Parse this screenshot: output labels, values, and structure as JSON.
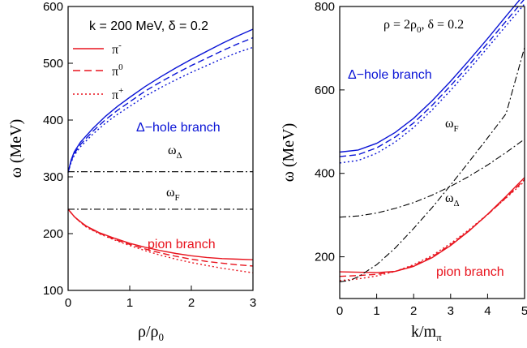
{
  "chart_data": [
    {
      "type": "line",
      "xlabel": "ρ/ρ",
      "xlabel_sub": "0",
      "ylabel": "ω (MeV)",
      "xlim": [
        0,
        3
      ],
      "ylim": [
        100,
        600
      ],
      "xticks": [
        0,
        1,
        2,
        3
      ],
      "yticks": [
        100,
        200,
        300,
        400,
        500,
        600
      ],
      "header": "k = 200 MeV, δ = 0.2",
      "legend": {
        "position": "top-left",
        "entries": [
          {
            "label": "π",
            "sup": "-",
            "style": "solid",
            "color": "#e8141e"
          },
          {
            "label": "π",
            "sup": "0",
            "style": "dashed",
            "color": "#e8141e"
          },
          {
            "label": "π",
            "sup": "+",
            "style": "dotted",
            "color": "#e8141e"
          }
        ]
      },
      "annotations": [
        {
          "id": "delta_hole",
          "text": "Δ−hole branch",
          "color": "#0a14d6"
        },
        {
          "id": "omega_delta",
          "text": "ω",
          "sub": "Δ",
          "color": "#000000"
        },
        {
          "id": "omega_f",
          "text": "ω",
          "sub": "F",
          "color": "#000000"
        },
        {
          "id": "pion_branch",
          "text": "pion branch",
          "color": "#e8141e"
        }
      ],
      "series": [
        {
          "group": "delta-hole",
          "particle": "π-",
          "color": "#0a14d6",
          "style": "solid",
          "x": [
            0,
            0.05,
            0.1,
            0.2,
            0.4,
            0.6,
            0.8,
            1.0,
            1.25,
            1.5,
            1.75,
            2.0,
            2.25,
            2.5,
            2.75,
            3.0
          ],
          "y": [
            308,
            330,
            344,
            361,
            385,
            406,
            424,
            440,
            459,
            476,
            492,
            507,
            521,
            535,
            548,
            560
          ]
        },
        {
          "group": "delta-hole",
          "particle": "π0",
          "color": "#0a14d6",
          "style": "dashed",
          "x": [
            0,
            0.05,
            0.1,
            0.2,
            0.4,
            0.6,
            0.8,
            1.0,
            1.25,
            1.5,
            1.75,
            2.0,
            2.25,
            2.5,
            2.75,
            3.0
          ],
          "y": [
            308,
            328,
            341,
            357,
            380,
            400,
            417,
            432,
            451,
            467,
            482,
            496,
            509,
            522,
            534,
            545
          ]
        },
        {
          "group": "delta-hole",
          "particle": "π+",
          "color": "#0a14d6",
          "style": "dotted",
          "x": [
            0,
            0.05,
            0.1,
            0.2,
            0.4,
            0.6,
            0.8,
            1.0,
            1.25,
            1.5,
            1.75,
            2.0,
            2.25,
            2.5,
            2.75,
            3.0
          ],
          "y": [
            308,
            326,
            338,
            353,
            375,
            394,
            410,
            424,
            442,
            457,
            471,
            484,
            496,
            508,
            519,
            528
          ]
        },
        {
          "group": "pion",
          "particle": "π-",
          "color": "#e8141e",
          "style": "solid",
          "x": [
            0,
            0.1,
            0.2,
            0.3,
            0.5,
            0.75,
            1.0,
            1.25,
            1.5,
            1.75,
            2.0,
            2.25,
            2.5,
            2.75,
            3.0
          ],
          "y": [
            243,
            230,
            221,
            213,
            202,
            192,
            183,
            176,
            170,
            165,
            161,
            158,
            156,
            155,
            154
          ]
        },
        {
          "group": "pion",
          "particle": "π0",
          "color": "#e8141e",
          "style": "dashed",
          "x": [
            0,
            0.1,
            0.2,
            0.3,
            0.5,
            0.75,
            1.0,
            1.25,
            1.5,
            1.75,
            2.0,
            2.25,
            2.5,
            2.75,
            3.0
          ],
          "y": [
            243,
            230,
            220,
            212,
            201,
            190,
            181,
            173,
            166,
            160,
            155,
            151,
            148,
            145,
            143
          ]
        },
        {
          "group": "pion",
          "particle": "π+",
          "color": "#e8141e",
          "style": "dotted",
          "x": [
            0,
            0.1,
            0.2,
            0.3,
            0.5,
            0.75,
            1.0,
            1.25,
            1.5,
            1.75,
            2.0,
            2.25,
            2.5,
            2.75,
            3.0
          ],
          "y": [
            243,
            230,
            220,
            211,
            200,
            189,
            179,
            170,
            162,
            155,
            149,
            144,
            139,
            135,
            131
          ]
        },
        {
          "group": "omega-delta",
          "particle": "",
          "color": "#000000",
          "style": "dashdot",
          "x": [
            0,
            3
          ],
          "y": [
            309,
            309
          ]
        },
        {
          "group": "omega-f",
          "particle": "",
          "color": "#000000",
          "style": "dashdot",
          "x": [
            0,
            3
          ],
          "y": [
            243,
            243
          ]
        }
      ]
    },
    {
      "type": "line",
      "xlabel": "k/m",
      "xlabel_sub": "π",
      "ylabel": "ω (MeV)",
      "xlim": [
        0,
        5
      ],
      "ylim": [
        100,
        800
      ],
      "xticks": [
        0,
        1,
        2,
        3,
        4,
        5
      ],
      "yticks": [
        200,
        400,
        600,
        800
      ],
      "header": "ρ = 2ρ",
      "header_sub": "0",
      "header_tail": ", δ = 0.2",
      "annotations": [
        {
          "id": "delta_hole",
          "text": "Δ−hole branch",
          "color": "#0a14d6"
        },
        {
          "id": "omega_f",
          "text": "ω",
          "sub": "F",
          "color": "#000000"
        },
        {
          "id": "omega_delta",
          "text": "ω",
          "sub": "Δ",
          "color": "#000000"
        },
        {
          "id": "pion_branch",
          "text": "pion branch",
          "color": "#e8141e"
        }
      ],
      "series": [
        {
          "group": "delta-hole",
          "particle": "π-",
          "color": "#0a14d6",
          "style": "solid",
          "x": [
            0,
            0.5,
            1,
            1.5,
            2,
            2.5,
            3,
            3.5,
            4,
            4.5,
            5
          ],
          "y": [
            451,
            456,
            472,
            498,
            532,
            574,
            621,
            671,
            723,
            777,
            830
          ]
        },
        {
          "group": "delta-hole",
          "particle": "π0",
          "color": "#0a14d6",
          "style": "dashed",
          "x": [
            0,
            0.5,
            1,
            1.5,
            2,
            2.5,
            3,
            3.5,
            4,
            4.5,
            5
          ],
          "y": [
            440,
            445,
            461,
            487,
            521,
            563,
            610,
            660,
            712,
            765,
            818
          ]
        },
        {
          "group": "delta-hole",
          "particle": "π+",
          "color": "#0a14d6",
          "style": "dotted",
          "x": [
            0,
            0.5,
            1,
            1.5,
            2,
            2.5,
            3,
            3.5,
            4,
            4.5,
            5
          ],
          "y": [
            425,
            431,
            448,
            475,
            510,
            552,
            599,
            649,
            701,
            754,
            806
          ]
        },
        {
          "group": "pion",
          "particle": "π-",
          "color": "#e8141e",
          "style": "solid",
          "x": [
            0,
            0.5,
            1,
            1.5,
            2,
            2.5,
            3,
            3.5,
            4,
            4.5,
            5
          ],
          "y": [
            164,
            163,
            162,
            165,
            177,
            198,
            227,
            262,
            302,
            345,
            390
          ]
        },
        {
          "group": "pion",
          "particle": "π0",
          "color": "#e8141e",
          "style": "dashed",
          "x": [
            0,
            0.5,
            1,
            1.5,
            2,
            2.5,
            3,
            3.5,
            4,
            4.5,
            5
          ],
          "y": [
            153,
            155,
            158,
            165,
            179,
            200,
            229,
            263,
            301,
            342,
            385
          ]
        },
        {
          "group": "pion",
          "particle": "π+",
          "color": "#e8141e",
          "style": "dotted",
          "x": [
            0,
            0.5,
            1,
            1.5,
            2,
            2.5,
            3,
            3.5,
            4,
            4.5,
            5
          ],
          "y": [
            143,
            147,
            154,
            165,
            181,
            203,
            232,
            265,
            302,
            341,
            381
          ]
        },
        {
          "group": "omega-f",
          "particle": "",
          "color": "#000000",
          "style": "dashdot",
          "x": [
            0,
            0.25,
            0.5,
            1,
            1.5,
            2,
            2.5,
            3,
            3.5,
            4,
            4.5,
            5
          ],
          "y": [
            140,
            143,
            152,
            181,
            221,
            268,
            318,
            372,
            428,
            485,
            543,
            702
          ]
        },
        {
          "group": "omega-delta",
          "particle": "",
          "color": "#000000",
          "style": "dashdot",
          "x": [
            0,
            0.5,
            1,
            1.5,
            2,
            2.5,
            3,
            3.5,
            4,
            4.5,
            5
          ],
          "y": [
            295,
            298,
            305,
            316,
            330,
            348,
            369,
            393,
            420,
            450,
            482
          ]
        }
      ]
    }
  ]
}
